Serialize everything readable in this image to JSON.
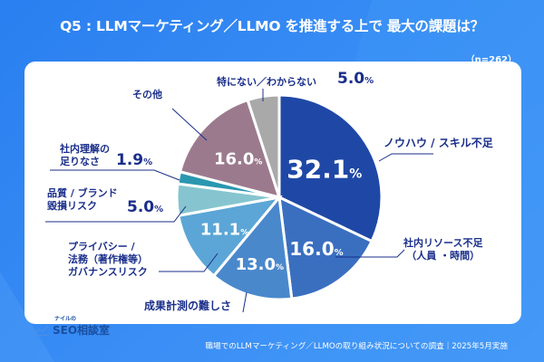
{
  "title": "Q5 : LLMマーケティング／LLMO を推進する上で 最大の課題は？",
  "sample_size": "（n=262）",
  "footer": "職場でのLLMマーケティング／LLMOの取り組み状況についての調査｜2025年5月実施",
  "logo": {
    "small": "ナイルの",
    "main": "SEO相談室"
  },
  "chart_data": {
    "type": "pie",
    "title": "Q5 : LLMマーケティング／LLMO を推進する上で 最大の課題は？",
    "unit": "%",
    "slices": [
      {
        "label": "ノウハウ / スキル不足",
        "value": 32.1,
        "value_label": "32.1",
        "color": "#1f48a6"
      },
      {
        "label": "社内リソース不足（人員 ・時間）",
        "label_lines": [
          "社内リソース不足",
          "（人員 ・時間）"
        ],
        "value": 16.0,
        "value_label": "16.0",
        "color": "#3a6fc0"
      },
      {
        "label": "成果計測の難しさ",
        "value": 13.0,
        "value_label": "13.0",
        "color": "#4a88cc"
      },
      {
        "label": "プライバシー / 法務（著作権等）ガバナンスリスク",
        "label_lines": [
          "プライバシー /",
          "法務（著作権等）",
          "ガバナンスリスク"
        ],
        "value": 11.1,
        "value_label": "11.1",
        "color": "#5ba6d6"
      },
      {
        "label": "品質 / ブランド毀損リスク",
        "label_lines": [
          "品質 / ブランド",
          "毀損リスク"
        ],
        "value": 5.0,
        "value_label": "5.0",
        "color": "#86c5cf"
      },
      {
        "label": "社内理解の足りなさ",
        "label_lines": [
          "社内理解の",
          "足りなさ"
        ],
        "value": 1.9,
        "value_label": "1.9",
        "color": "#2a97b0"
      },
      {
        "label": "その他",
        "value": 16.0,
        "value_label": "16.0",
        "color": "#9c7a8e"
      },
      {
        "label": "特にない／わからない",
        "value": 5.0,
        "value_label": "5.0",
        "color": "#a9a9a9"
      }
    ]
  }
}
